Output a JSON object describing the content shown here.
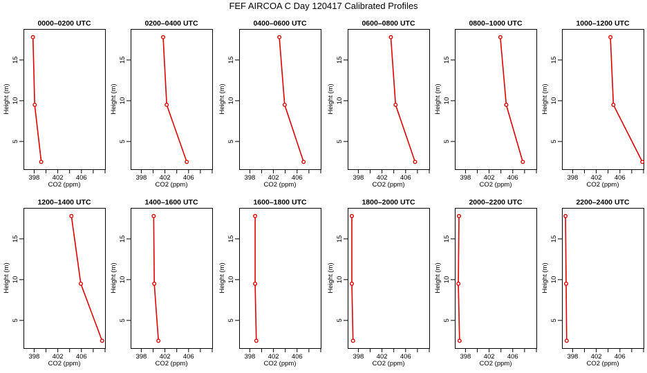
{
  "figure": {
    "title": "FEF AIRCOA C  Day 120417  Calibrated Profiles",
    "line_color": "#e00000",
    "marker_color": "#e00000"
  },
  "chart_data": [
    {
      "type": "line",
      "title": "0000–0200 UTC",
      "xlabel": "CO2 (ppm)",
      "ylabel": "Height (m)",
      "x_ticks": [
        "398",
        "402",
        "406"
      ],
      "y_ticks": [
        "5",
        "10",
        "15"
      ],
      "xlim": [
        396.2,
        410
      ],
      "ylim": [
        1.6,
        18.8
      ],
      "series": [
        {
          "x": [
            397.8,
            398.1,
            399.2
          ],
          "y": [
            17.8,
            9.5,
            2.5
          ]
        }
      ]
    },
    {
      "type": "line",
      "title": "0200–0400 UTC",
      "xlabel": "CO2 (ppm)",
      "ylabel": "Height (m)",
      "x_ticks": [
        "398",
        "402",
        "406"
      ],
      "y_ticks": [
        "5",
        "10",
        "15"
      ],
      "xlim": [
        396.2,
        410
      ],
      "ylim": [
        1.6,
        18.8
      ],
      "series": [
        {
          "x": [
            401.7,
            402.3,
            405.7
          ],
          "y": [
            17.8,
            9.5,
            2.5
          ]
        }
      ]
    },
    {
      "type": "line",
      "title": "0400–0600 UTC",
      "xlabel": "CO2 (ppm)",
      "ylabel": "Height (m)",
      "x_ticks": [
        "398",
        "402",
        "406"
      ],
      "y_ticks": [
        "5",
        "10",
        "15"
      ],
      "xlim": [
        396.2,
        410
      ],
      "ylim": [
        1.6,
        18.8
      ],
      "series": [
        {
          "x": [
            403.0,
            403.9,
            407.1
          ],
          "y": [
            17.8,
            9.5,
            2.5
          ]
        }
      ]
    },
    {
      "type": "line",
      "title": "0600–0800 UTC",
      "xlabel": "CO2 (ppm)",
      "ylabel": "Height (m)",
      "x_ticks": [
        "398",
        "402",
        "406"
      ],
      "y_ticks": [
        "5",
        "10",
        "15"
      ],
      "xlim": [
        396.2,
        410
      ],
      "ylim": [
        1.6,
        18.8
      ],
      "series": [
        {
          "x": [
            403.5,
            404.3,
            407.6
          ],
          "y": [
            17.8,
            9.5,
            2.5
          ]
        }
      ]
    },
    {
      "type": "line",
      "title": "0800–1000 UTC",
      "xlabel": "CO2 (ppm)",
      "ylabel": "Height (m)",
      "x_ticks": [
        "398",
        "402",
        "406"
      ],
      "y_ticks": [
        "5",
        "10",
        "15"
      ],
      "xlim": [
        396.2,
        410
      ],
      "ylim": [
        1.6,
        18.8
      ],
      "series": [
        {
          "x": [
            403.9,
            404.9,
            407.7
          ],
          "y": [
            17.8,
            9.5,
            2.5
          ]
        }
      ]
    },
    {
      "type": "line",
      "title": "1000–1200 UTC",
      "xlabel": "CO2 (ppm)",
      "ylabel": "Height (m)",
      "x_ticks": [
        "398",
        "402",
        "406"
      ],
      "y_ticks": [
        "5",
        "10",
        "15"
      ],
      "xlim": [
        396.2,
        410
      ],
      "ylim": [
        1.6,
        18.8
      ],
      "series": [
        {
          "x": [
            404.4,
            404.9,
            409.8
          ],
          "y": [
            17.8,
            9.5,
            2.5
          ]
        }
      ]
    },
    {
      "type": "line",
      "title": "1200–1400 UTC",
      "xlabel": "CO2 (ppm)",
      "ylabel": "Height (m)",
      "x_ticks": [
        "398",
        "402",
        "406"
      ],
      "y_ticks": [
        "5",
        "10",
        "15"
      ],
      "xlim": [
        396.2,
        410
      ],
      "ylim": [
        1.6,
        18.8
      ],
      "series": [
        {
          "x": [
            404.3,
            405.9,
            409.5
          ],
          "y": [
            17.8,
            9.5,
            2.5
          ]
        }
      ]
    },
    {
      "type": "line",
      "title": "1400–1600 UTC",
      "xlabel": "CO2 (ppm)",
      "ylabel": "Height (m)",
      "x_ticks": [
        "398",
        "402",
        "406"
      ],
      "y_ticks": [
        "5",
        "10",
        "15"
      ],
      "xlim": [
        396.2,
        410
      ],
      "ylim": [
        1.6,
        18.8
      ],
      "series": [
        {
          "x": [
            400.1,
            400.2,
            400.9
          ],
          "y": [
            17.8,
            9.5,
            2.5
          ]
        }
      ]
    },
    {
      "type": "line",
      "title": "1600–1800 UTC",
      "xlabel": "CO2 (ppm)",
      "ylabel": "Height (m)",
      "x_ticks": [
        "398",
        "402",
        "406"
      ],
      "y_ticks": [
        "5",
        "10",
        "15"
      ],
      "xlim": [
        396.2,
        410
      ],
      "ylim": [
        1.6,
        18.8
      ],
      "series": [
        {
          "x": [
            398.9,
            398.9,
            399.1
          ],
          "y": [
            17.8,
            9.5,
            2.5
          ]
        }
      ]
    },
    {
      "type": "line",
      "title": "1800–2000 UTC",
      "xlabel": "CO2 (ppm)",
      "ylabel": "Height (m)",
      "x_ticks": [
        "398",
        "402",
        "406"
      ],
      "y_ticks": [
        "5",
        "10",
        "15"
      ],
      "xlim": [
        396.2,
        410
      ],
      "ylim": [
        1.6,
        18.8
      ],
      "series": [
        {
          "x": [
            396.9,
            396.9,
            397.1
          ],
          "y": [
            17.8,
            9.5,
            2.5
          ]
        }
      ]
    },
    {
      "type": "line",
      "title": "2000–2200 UTC",
      "xlabel": "CO2 (ppm)",
      "ylabel": "Height (m)",
      "x_ticks": [
        "398",
        "402",
        "406"
      ],
      "y_ticks": [
        "5",
        "10",
        "15"
      ],
      "xlim": [
        396.2,
        410
      ],
      "ylim": [
        1.6,
        18.8
      ],
      "series": [
        {
          "x": [
            396.9,
            396.8,
            397.0
          ],
          "y": [
            17.8,
            9.5,
            2.5
          ]
        }
      ]
    },
    {
      "type": "line",
      "title": "2200–2400 UTC",
      "xlabel": "CO2 (ppm)",
      "ylabel": "Height (m)",
      "x_ticks": [
        "398",
        "402",
        "406"
      ],
      "y_ticks": [
        "5",
        "10",
        "15"
      ],
      "xlim": [
        396.2,
        410
      ],
      "ylim": [
        1.6,
        18.8
      ],
      "series": [
        {
          "x": [
            396.8,
            396.9,
            397.0
          ],
          "y": [
            17.8,
            9.5,
            2.5
          ]
        }
      ]
    }
  ]
}
